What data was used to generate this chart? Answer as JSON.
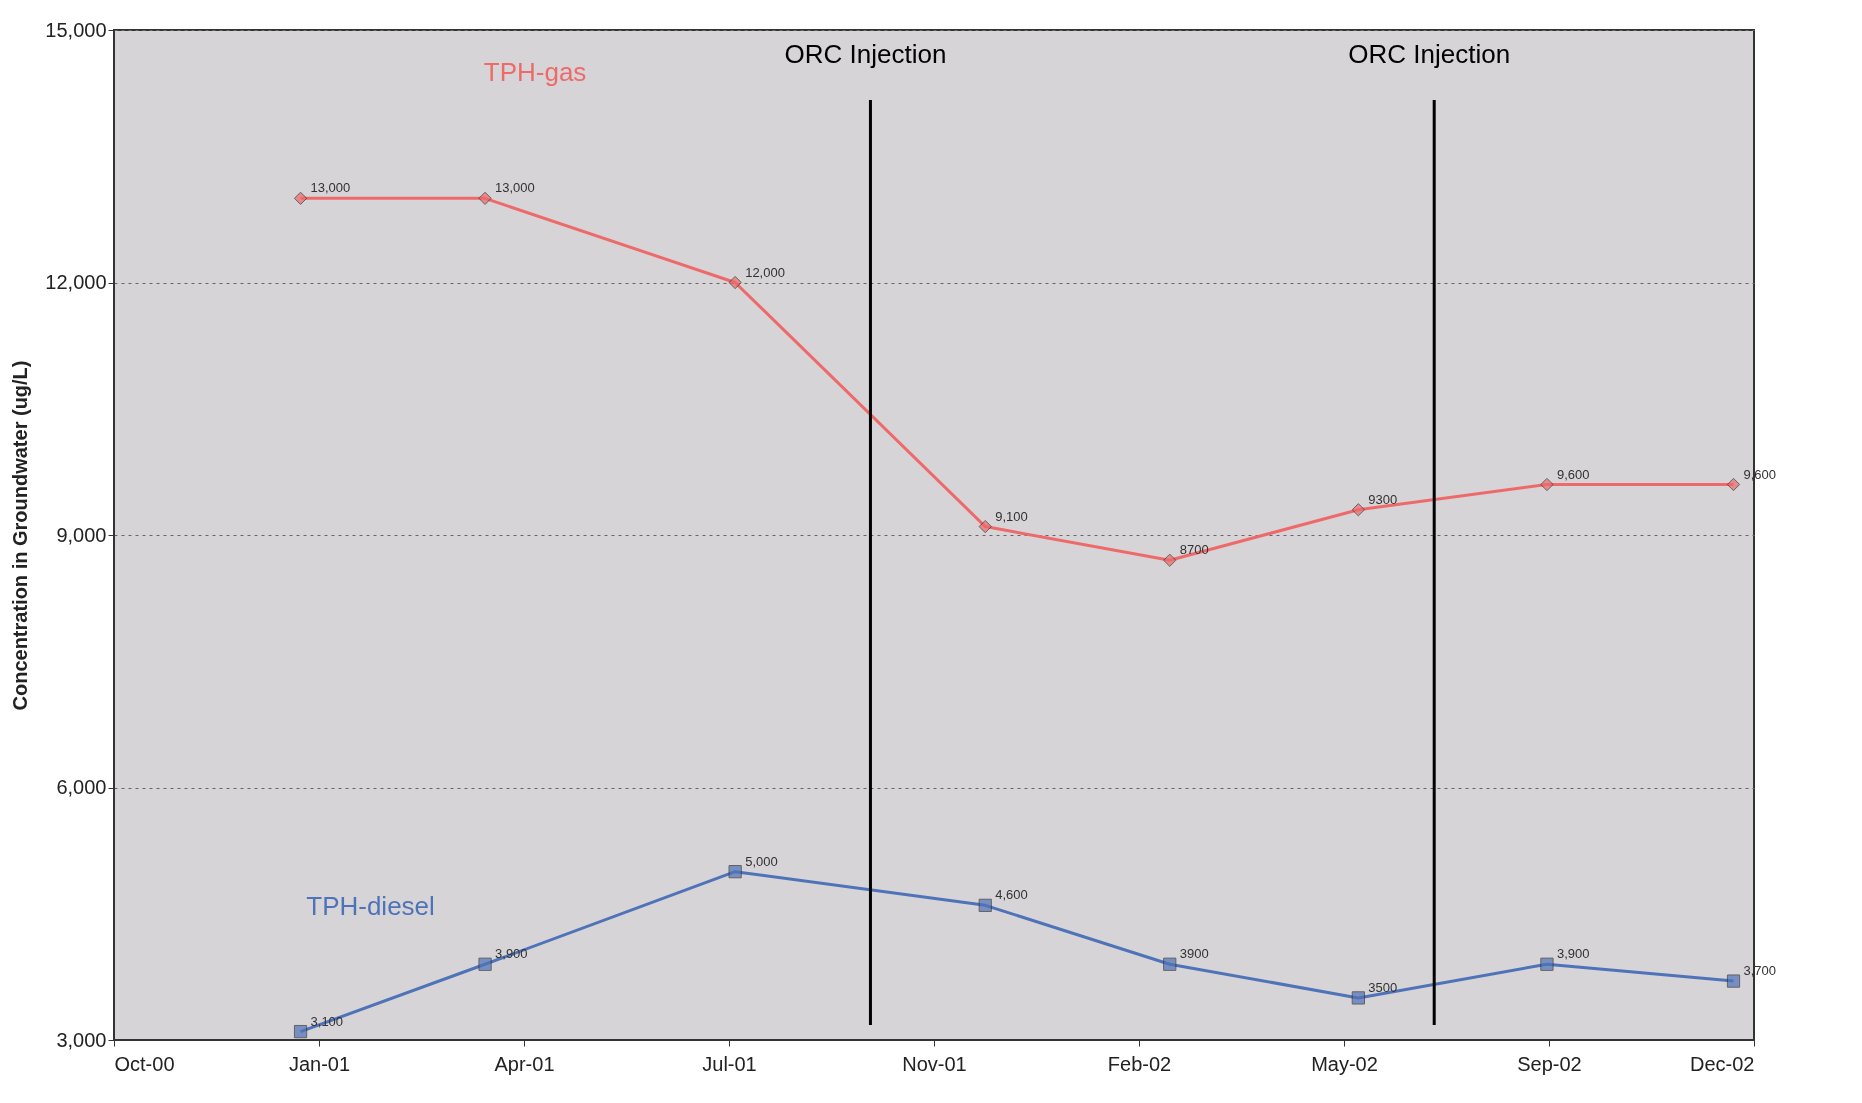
{
  "chart_data": {
    "type": "line",
    "ylabel": "Concentration in Groundwater (ug/L)",
    "x": [
      "2000-12-31",
      "2001-03-31",
      "2001-07-31",
      "2001-11-30",
      "2002-02-28",
      "2002-05-31",
      "2002-08-31",
      "2002-11-30"
    ],
    "series": [
      {
        "name": "TPH-gas",
        "color": "#ee6a6a",
        "marker": "diamond",
        "values": [
          13000,
          13000,
          12000,
          9100,
          8700,
          9300,
          9600,
          9600
        ],
        "value_labels": [
          "13,000",
          "13,000",
          "12,000",
          "9,100",
          "8700",
          "9300",
          "9,600",
          "9,600"
        ]
      },
      {
        "name": "TPH-diesel",
        "color": "#4f73b8",
        "marker": "square",
        "values": [
          3100,
          3900,
          5000,
          4600,
          3900,
          3500,
          3900,
          3700
        ],
        "value_labels": [
          "3,100",
          "3,900",
          "5,000",
          "4,600",
          "3900",
          "3500",
          "3,900",
          "3,700"
        ]
      }
    ],
    "xlim": [
      "2000-10-01",
      "2002-12-10"
    ],
    "xticks": [
      {
        "value": "2000-10-01",
        "label": "Oct-00"
      },
      {
        "value": "2001-01-09",
        "label": "Jan-01"
      },
      {
        "value": "2001-04-19",
        "label": "Apr-01"
      },
      {
        "value": "2001-07-28",
        "label": "Jul-01"
      },
      {
        "value": "2001-11-05",
        "label": "Nov-01"
      },
      {
        "value": "2002-02-13",
        "label": "Feb-02"
      },
      {
        "value": "2002-05-24",
        "label": "May-02"
      },
      {
        "value": "2002-09-01",
        "label": "Sep-02"
      },
      {
        "value": "2002-12-10",
        "label": "Dec-02"
      }
    ],
    "ylim": [
      3000,
      15000
    ],
    "yticks": [
      {
        "value": 3000,
        "label": "3,000"
      },
      {
        "value": 6000,
        "label": "6,000"
      },
      {
        "value": 9000,
        "label": "9,000"
      },
      {
        "value": 12000,
        "label": "12,000"
      },
      {
        "value": 15000,
        "label": "15,000"
      }
    ],
    "grid": "y",
    "line_style": "solid",
    "ref_lines": [
      {
        "axis": "x",
        "value": "2001-10-05",
        "label": "ORC Injection",
        "color": "#000000"
      },
      {
        "axis": "x",
        "value": "2002-07-07",
        "label": "ORC Injection",
        "color": "#000000"
      }
    ]
  }
}
